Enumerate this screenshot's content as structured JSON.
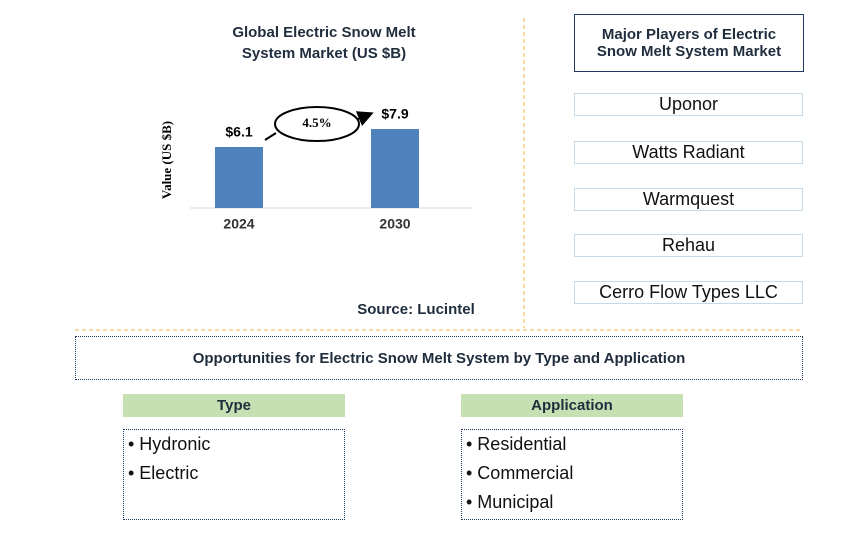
{
  "chart_data": {
    "type": "bar",
    "title": "Global Electric Snow Melt System Market (US $B)",
    "y_label": "Value (US $B)",
    "categories": [
      "2024",
      "2030"
    ],
    "values": [
      6.1,
      7.9
    ],
    "value_labels": [
      "$6.1",
      "$7.9"
    ],
    "color": "#4f81bd",
    "ylim": [
      0,
      10
    ],
    "annotation": "4.5%",
    "source": "Source: Lucintel"
  },
  "players": {
    "title": "Major Players of Electric Snow Melt System Market",
    "items": [
      "Uponor",
      "Watts Radiant",
      "Warmquest",
      "Rehau",
      "Cerro Flow Types LLC"
    ]
  },
  "opportunities": {
    "title": "Opportunities for Electric Snow Melt System by Type and Application",
    "columns": [
      {
        "header": "Type",
        "items": [
          "• Hydronic",
          "• Electric"
        ]
      },
      {
        "header": "Application",
        "items": [
          "• Residential",
          "• Commercial",
          "• Municipal"
        ]
      }
    ]
  }
}
